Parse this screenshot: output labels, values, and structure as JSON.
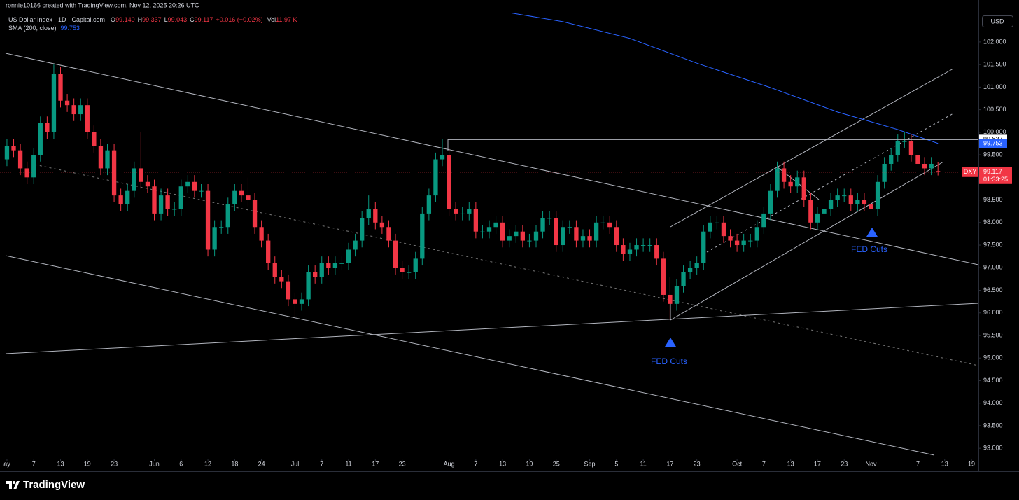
{
  "header": {
    "credit": "ronnie10166 created with TradingView.com, Nov 12, 2025 20:26 UTC",
    "symbol": "US Dollar Index · 1D · Capital.com",
    "o_label": "O",
    "o": "99.140",
    "h_label": "H",
    "h": "99.337",
    "l_label": "L",
    "l": "99.043",
    "c_label": "C",
    "c": "99.117",
    "change": "+0.016 (+0.02%)",
    "vol_label": "Vol",
    "vol": "11.97 K",
    "currency": "USD"
  },
  "chart_data": {
    "type": "candlestick",
    "xlim": [
      -1.04,
      145.04
    ],
    "ylim": [
      92.77,
      102.65
    ],
    "grid": false,
    "up_color": "#089981",
    "down_color": "#f23645",
    "yticks": [
      {
        "value": 93,
        "label": "93.000"
      },
      {
        "value": 93.5,
        "label": "93.500"
      },
      {
        "value": 94,
        "label": "94.000"
      },
      {
        "value": 94.5,
        "label": "94.500"
      },
      {
        "value": 95,
        "label": "95.000"
      },
      {
        "value": 95.5,
        "label": "95.500"
      },
      {
        "value": 96,
        "label": "96.000"
      },
      {
        "value": 96.5,
        "label": "96.500"
      },
      {
        "value": 97,
        "label": "97.000"
      },
      {
        "value": 97.5,
        "label": "97.500"
      },
      {
        "value": 98,
        "label": "98.000"
      },
      {
        "value": 98.5,
        "label": "98.500"
      },
      {
        "value": 99,
        "label": "99.000"
      },
      {
        "value": 99.5,
        "label": "99.500"
      },
      {
        "value": 100,
        "label": "100.000"
      },
      {
        "value": 100.5,
        "label": "100.500"
      },
      {
        "value": 101,
        "label": "101.000"
      },
      {
        "value": 101.5,
        "label": "101.500"
      },
      {
        "value": 102,
        "label": "102.000"
      }
    ],
    "xticks": [
      {
        "value": 0,
        "label": "ay"
      },
      {
        "value": 4,
        "label": "7"
      },
      {
        "value": 8,
        "label": "13"
      },
      {
        "value": 12,
        "label": "19"
      },
      {
        "value": 16,
        "label": "23"
      },
      {
        "value": 22,
        "label": "Jun"
      },
      {
        "value": 26,
        "label": "6"
      },
      {
        "value": 30,
        "label": "12"
      },
      {
        "value": 34,
        "label": "18"
      },
      {
        "value": 38,
        "label": "24"
      },
      {
        "value": 43,
        "label": "Jul"
      },
      {
        "value": 47,
        "label": "7"
      },
      {
        "value": 51,
        "label": "11"
      },
      {
        "value": 55,
        "label": "17"
      },
      {
        "value": 59,
        "label": "23"
      },
      {
        "value": 66,
        "label": "Aug"
      },
      {
        "value": 70,
        "label": "7"
      },
      {
        "value": 74,
        "label": "13"
      },
      {
        "value": 78,
        "label": "19"
      },
      {
        "value": 82,
        "label": "25"
      },
      {
        "value": 87,
        "label": "Sep"
      },
      {
        "value": 91,
        "label": "5"
      },
      {
        "value": 95,
        "label": "11"
      },
      {
        "value": 99,
        "label": "17"
      },
      {
        "value": 103,
        "label": "23"
      },
      {
        "value": 109,
        "label": "Oct"
      },
      {
        "value": 113,
        "label": "7"
      },
      {
        "value": 117,
        "label": "13"
      },
      {
        "value": 121,
        "label": "17"
      },
      {
        "value": 125,
        "label": "23"
      },
      {
        "value": 129,
        "label": "Nov"
      },
      {
        "value": 136,
        "label": "7"
      },
      {
        "value": 140,
        "label": "13"
      },
      {
        "value": 144,
        "label": "19"
      }
    ],
    "ohlc": [
      [
        99.4,
        99.85,
        99.25,
        99.7
      ],
      [
        99.7,
        99.85,
        99.45,
        99.6
      ],
      [
        99.6,
        99.75,
        99.05,
        99.2
      ],
      [
        99.2,
        99.35,
        98.85,
        99.0
      ],
      [
        99.0,
        99.65,
        98.85,
        99.5
      ],
      [
        99.5,
        100.35,
        99.35,
        100.2
      ],
      [
        100.2,
        100.35,
        99.85,
        100.0
      ],
      [
        100.0,
        101.5,
        99.85,
        101.3
      ],
      [
        101.3,
        101.45,
        100.55,
        100.7
      ],
      [
        100.7,
        100.85,
        100.45,
        100.6
      ],
      [
        100.6,
        100.75,
        100.25,
        100.4
      ],
      [
        100.4,
        100.75,
        100.25,
        100.6
      ],
      [
        100.6,
        100.75,
        99.85,
        100.0
      ],
      [
        100.0,
        100.15,
        99.55,
        99.7
      ],
      [
        99.7,
        99.85,
        99.05,
        99.2
      ],
      [
        99.2,
        99.75,
        99.05,
        99.6
      ],
      [
        99.6,
        99.75,
        98.45,
        98.6
      ],
      [
        98.6,
        98.75,
        98.25,
        98.4
      ],
      [
        98.4,
        98.85,
        98.25,
        98.7
      ],
      [
        98.7,
        99.35,
        98.55,
        99.2
      ],
      [
        99.2,
        100.0,
        98.75,
        98.9
      ],
      [
        98.9,
        99.05,
        98.65,
        98.8
      ],
      [
        98.8,
        98.95,
        98.05,
        98.2
      ],
      [
        98.2,
        98.75,
        98.05,
        98.6
      ],
      [
        98.6,
        98.75,
        98.15,
        98.3
      ],
      [
        98.3,
        98.45,
        98.15,
        98.3
      ],
      [
        98.3,
        98.95,
        98.15,
        98.8
      ],
      [
        98.8,
        99.05,
        98.65,
        98.9
      ],
      [
        98.9,
        99.05,
        98.55,
        98.7
      ],
      [
        98.7,
        98.85,
        98.55,
        98.7
      ],
      [
        98.7,
        98.85,
        97.25,
        97.4
      ],
      [
        97.4,
        98.05,
        97.25,
        97.9
      ],
      [
        97.9,
        98.05,
        97.75,
        97.9
      ],
      [
        97.9,
        98.55,
        97.75,
        98.4
      ],
      [
        98.4,
        98.85,
        98.25,
        98.7
      ],
      [
        98.7,
        98.85,
        98.45,
        98.6
      ],
      [
        98.6,
        99.0,
        98.35,
        98.5
      ],
      [
        98.5,
        98.65,
        97.75,
        97.9
      ],
      [
        97.9,
        98.05,
        97.45,
        97.6
      ],
      [
        97.6,
        97.75,
        96.95,
        97.1
      ],
      [
        97.1,
        97.25,
        96.65,
        96.8
      ],
      [
        96.8,
        96.95,
        96.55,
        96.7
      ],
      [
        96.7,
        96.85,
        96.15,
        96.3
      ],
      [
        96.3,
        96.45,
        95.9,
        96.2
      ],
      [
        96.2,
        96.45,
        96.05,
        96.3
      ],
      [
        96.3,
        97.05,
        96.15,
        96.9
      ],
      [
        96.9,
        97.05,
        96.65,
        96.8
      ],
      [
        96.8,
        97.25,
        96.65,
        97.1
      ],
      [
        97.1,
        97.25,
        96.85,
        97.0
      ],
      [
        97.0,
        97.25,
        96.85,
        97.1
      ],
      [
        97.1,
        97.25,
        96.95,
        97.1
      ],
      [
        97.1,
        97.55,
        96.95,
        97.4
      ],
      [
        97.4,
        97.75,
        97.25,
        97.6
      ],
      [
        97.6,
        98.25,
        97.45,
        98.1
      ],
      [
        98.1,
        98.6,
        97.95,
        98.3
      ],
      [
        98.3,
        98.45,
        97.85,
        98.0
      ],
      [
        98.0,
        98.15,
        97.75,
        97.9
      ],
      [
        97.9,
        98.05,
        97.45,
        97.6
      ],
      [
        97.6,
        97.75,
        96.85,
        97.0
      ],
      [
        97.0,
        97.15,
        96.75,
        96.9
      ],
      [
        96.9,
        97.05,
        96.75,
        96.9
      ],
      [
        96.9,
        97.35,
        96.75,
        97.2
      ],
      [
        97.2,
        98.35,
        97.05,
        98.2
      ],
      [
        98.2,
        98.75,
        98.05,
        98.6
      ],
      [
        98.6,
        99.55,
        98.45,
        99.4
      ],
      [
        99.4,
        99.85,
        99.25,
        99.5
      ],
      [
        99.5,
        99.65,
        98.15,
        98.3
      ],
      [
        98.3,
        98.45,
        98.05,
        98.2
      ],
      [
        98.2,
        98.35,
        98.05,
        98.2
      ],
      [
        98.2,
        98.45,
        98.05,
        98.3
      ],
      [
        98.3,
        98.45,
        97.65,
        97.8
      ],
      [
        97.8,
        97.95,
        97.65,
        97.8
      ],
      [
        97.8,
        98.05,
        97.65,
        97.9
      ],
      [
        97.9,
        98.15,
        97.75,
        98.0
      ],
      [
        98.0,
        98.15,
        97.45,
        97.6
      ],
      [
        97.6,
        97.85,
        97.45,
        97.7
      ],
      [
        97.7,
        97.95,
        97.55,
        97.8
      ],
      [
        97.8,
        97.95,
        97.45,
        97.6
      ],
      [
        97.6,
        97.75,
        97.45,
        97.6
      ],
      [
        97.6,
        97.95,
        97.45,
        97.8
      ],
      [
        97.8,
        98.25,
        97.65,
        98.1
      ],
      [
        98.1,
        98.25,
        97.95,
        98.1
      ],
      [
        98.1,
        98.25,
        97.35,
        97.5
      ],
      [
        97.5,
        98.05,
        97.35,
        97.9
      ],
      [
        97.9,
        98.05,
        97.75,
        97.9
      ],
      [
        97.9,
        98.05,
        97.45,
        97.6
      ],
      [
        97.6,
        97.85,
        97.45,
        97.7
      ],
      [
        97.7,
        97.85,
        97.45,
        97.6
      ],
      [
        97.6,
        98.15,
        97.45,
        98.0
      ],
      [
        98.0,
        98.15,
        97.85,
        98.0
      ],
      [
        98.0,
        98.15,
        97.75,
        97.9
      ],
      [
        97.9,
        98.05,
        97.35,
        97.5
      ],
      [
        97.5,
        97.65,
        97.15,
        97.3
      ],
      [
        97.3,
        97.55,
        97.15,
        97.4
      ],
      [
        97.4,
        97.65,
        97.25,
        97.5
      ],
      [
        97.5,
        97.65,
        97.35,
        97.5
      ],
      [
        97.5,
        97.65,
        97.35,
        97.5
      ],
      [
        97.5,
        97.65,
        97.05,
        97.2
      ],
      [
        97.2,
        97.35,
        96.25,
        96.4
      ],
      [
        96.4,
        96.8,
        95.85,
        96.2
      ],
      [
        96.2,
        96.75,
        96.05,
        96.6
      ],
      [
        96.6,
        97.05,
        96.45,
        96.9
      ],
      [
        96.9,
        97.15,
        96.75,
        97.0
      ],
      [
        97.0,
        97.25,
        96.85,
        97.1
      ],
      [
        97.1,
        97.95,
        96.95,
        97.8
      ],
      [
        97.8,
        98.15,
        97.65,
        98.0
      ],
      [
        98.0,
        98.15,
        97.85,
        98.0
      ],
      [
        98.0,
        98.15,
        97.55,
        97.7
      ],
      [
        97.7,
        97.85,
        97.45,
        97.6
      ],
      [
        97.6,
        97.75,
        97.35,
        97.5
      ],
      [
        97.5,
        97.75,
        97.35,
        97.6
      ],
      [
        97.6,
        97.75,
        97.45,
        97.6
      ],
      [
        97.6,
        98.05,
        97.45,
        97.9
      ],
      [
        97.9,
        98.35,
        97.75,
        98.2
      ],
      [
        98.2,
        98.85,
        98.05,
        98.7
      ],
      [
        98.7,
        99.35,
        98.55,
        99.2
      ],
      [
        99.2,
        99.35,
        98.75,
        98.9
      ],
      [
        98.9,
        99.05,
        98.65,
        98.8
      ],
      [
        98.8,
        99.15,
        98.65,
        99.0
      ],
      [
        99.0,
        99.15,
        98.35,
        98.5
      ],
      [
        98.5,
        98.65,
        97.85,
        98.0
      ],
      [
        98.0,
        98.35,
        97.85,
        98.2
      ],
      [
        98.2,
        98.45,
        98.05,
        98.3
      ],
      [
        98.3,
        98.65,
        98.15,
        98.5
      ],
      [
        98.5,
        98.75,
        98.35,
        98.6
      ],
      [
        98.6,
        98.75,
        98.45,
        98.6
      ],
      [
        98.6,
        98.75,
        98.25,
        98.4
      ],
      [
        98.4,
        98.65,
        98.25,
        98.5
      ],
      [
        98.5,
        98.65,
        98.25,
        98.4
      ],
      [
        98.4,
        98.55,
        98.15,
        98.3
      ],
      [
        98.3,
        99.05,
        98.15,
        98.9
      ],
      [
        98.9,
        99.45,
        98.75,
        99.3
      ],
      [
        99.3,
        99.65,
        99.15,
        99.5
      ],
      [
        99.5,
        99.95,
        99.35,
        99.8
      ],
      [
        99.8,
        100.0,
        99.65,
        99.8
      ],
      [
        99.8,
        99.95,
        99.35,
        99.5
      ],
      [
        99.5,
        99.65,
        99.15,
        99.3
      ],
      [
        99.3,
        99.45,
        99.05,
        99.2
      ],
      [
        99.2,
        99.45,
        99.05,
        99.3
      ],
      [
        99.14,
        99.337,
        99.043,
        99.117
      ]
    ],
    "sma": {
      "name": "SMA (200, close)",
      "color": "#2962ff",
      "x": [
        75,
        83,
        93,
        103,
        114,
        124,
        133,
        139
      ],
      "values": [
        102.65,
        102.45,
        102.08,
        101.53,
        100.99,
        100.45,
        100.06,
        99.753
      ]
    },
    "level": 99.837,
    "symbol_tag": "DXY",
    "countdown": "01:33:25",
    "annotations": [
      {
        "text": "FED Cuts"
      },
      {
        "text": "FED Cuts"
      }
    ]
  },
  "footer": {
    "brand": "TradingView"
  }
}
